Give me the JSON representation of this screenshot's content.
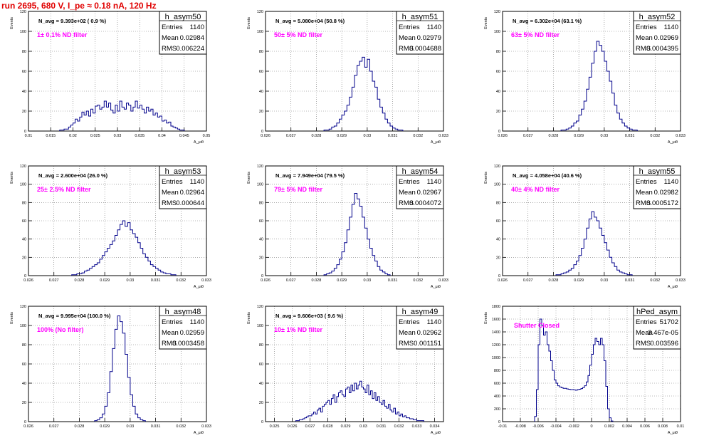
{
  "page": {
    "title": "run 2695,   680 V, I_pe ≈ 0.18 nA, 120 Hz"
  },
  "style": {
    "line_color": "#00008b",
    "note_color": "#ff00ff",
    "title_color": "#e00000",
    "grid": true
  },
  "chart_data": [
    {
      "type": "bar",
      "name": "h_asym50",
      "stats": {
        "entries_label": "Entries",
        "entries": "1140",
        "mean_label": "Mean",
        "mean": "0.02984",
        "rms_label": "RMS",
        "rms": "0.006224"
      },
      "navg": "N_avg = 9.393e+02 ( 0.9 %)",
      "note": "1± 0.1% ND filter",
      "xlabel": "A_μιθ",
      "ylabel": "Events",
      "xlim": [
        0.01,
        0.05
      ],
      "ylim": [
        0,
        120
      ],
      "xticks": [
        0.01,
        0.015,
        0.02,
        0.025,
        0.03,
        0.035,
        0.04,
        0.045,
        0.05
      ],
      "xticklabels": [
        "0.01",
        "0.015",
        "0.02",
        "0.025",
        "0.03",
        "0.035",
        "0.04",
        "0.045",
        "0.05"
      ],
      "yticks": [
        0,
        20,
        40,
        60,
        80,
        100,
        120
      ],
      "bin_start": 0.017,
      "bin_width": 0.0005,
      "values": [
        1,
        1,
        2,
        2,
        4,
        6,
        8,
        12,
        10,
        14,
        19,
        16,
        20,
        15,
        22,
        18,
        25,
        26,
        22,
        24,
        30,
        24,
        28,
        21,
        18,
        26,
        20,
        30,
        24,
        22,
        28,
        26,
        20,
        24,
        30,
        23,
        26,
        22,
        18,
        24,
        20,
        22,
        16,
        18,
        14,
        15,
        10,
        11,
        8,
        9,
        5,
        4,
        3,
        2,
        1,
        1
      ]
    },
    {
      "type": "bar",
      "name": "h_asym51",
      "stats": {
        "entries_label": "Entries",
        "entries": "1140",
        "mean_label": "Mean",
        "mean": "0.02979",
        "rms_label": "RMS",
        "rms": "0.0004688"
      },
      "navg": "N_avg = 5.080e+04 (50.8 %)",
      "note": "50± 5% ND filter",
      "xlabel": "A_μιθ",
      "ylabel": "Events",
      "xlim": [
        0.026,
        0.033
      ],
      "ylim": [
        0,
        120
      ],
      "xticks": [
        0.026,
        0.027,
        0.028,
        0.029,
        0.03,
        0.031,
        0.032,
        0.033
      ],
      "xticklabels": [
        "0.026",
        "0.027",
        "0.028",
        "0.029",
        "0.03",
        "0.031",
        "0.032",
        "0.033"
      ],
      "yticks": [
        0,
        20,
        40,
        60,
        80,
        100,
        120
      ],
      "bin_start": 0.0283,
      "bin_width": 0.0001,
      "values": [
        1,
        1,
        2,
        4,
        5,
        8,
        12,
        16,
        20,
        26,
        34,
        44,
        56,
        66,
        70,
        74,
        64,
        72,
        60,
        50,
        44,
        32,
        24,
        18,
        12,
        8,
        5,
        3,
        2,
        1,
        1
      ]
    },
    {
      "type": "bar",
      "name": "h_asym52",
      "stats": {
        "entries_label": "Entries",
        "entries": "1140",
        "mean_label": "Mean",
        "mean": "0.02969",
        "rms_label": "RMS",
        "rms": "0.0004395"
      },
      "navg": "N_avg = 6.302e+04 (63.1 %)",
      "note": "63± 5% ND filter",
      "xlabel": "A_μιθ",
      "ylabel": "Events",
      "xlim": [
        0.026,
        0.033
      ],
      "ylim": [
        0,
        120
      ],
      "xticks": [
        0.026,
        0.027,
        0.028,
        0.029,
        0.03,
        0.031,
        0.032,
        0.033
      ],
      "xticklabels": [
        "0.026",
        "0.027",
        "0.028",
        "0.029",
        "0.03",
        "0.031",
        "0.032",
        "0.033"
      ],
      "yticks": [
        0,
        20,
        40,
        60,
        80,
        100,
        120
      ],
      "bin_start": 0.0283,
      "bin_width": 0.0001,
      "values": [
        1,
        1,
        2,
        3,
        5,
        8,
        10,
        16,
        22,
        30,
        42,
        54,
        68,
        80,
        90,
        86,
        80,
        70,
        60,
        50,
        38,
        26,
        18,
        12,
        8,
        5,
        3,
        2,
        1,
        1
      ]
    },
    {
      "type": "bar",
      "name": "h_asym53",
      "stats": {
        "entries_label": "Entries",
        "entries": "1140",
        "mean_label": "Mean",
        "mean": "0.02964",
        "rms_label": "RMS",
        "rms": "0.000644"
      },
      "navg": "N_avg = 2.600e+04 (26.0 %)",
      "note": "25± 2.5% ND filter",
      "xlabel": "A_μιθ",
      "ylabel": "Events",
      "xlim": [
        0.026,
        0.033
      ],
      "ylim": [
        0,
        120
      ],
      "xticks": [
        0.026,
        0.027,
        0.028,
        0.029,
        0.03,
        0.031,
        0.032,
        0.033
      ],
      "xticklabels": [
        "0.026",
        "0.027",
        "0.028",
        "0.029",
        "0.03",
        "0.031",
        "0.032",
        "0.033"
      ],
      "yticks": [
        0,
        20,
        40,
        60,
        80,
        100,
        120
      ],
      "bin_start": 0.0277,
      "bin_width": 0.0001,
      "values": [
        1,
        1,
        2,
        2,
        3,
        5,
        6,
        8,
        10,
        12,
        14,
        18,
        22,
        26,
        30,
        34,
        38,
        44,
        50,
        56,
        60,
        54,
        58,
        50,
        46,
        42,
        36,
        30,
        24,
        20,
        16,
        12,
        10,
        8,
        6,
        4,
        3,
        2,
        2,
        1,
        1
      ]
    },
    {
      "type": "bar",
      "name": "h_asym54",
      "stats": {
        "entries_label": "Entries",
        "entries": "1140",
        "mean_label": "Mean",
        "mean": "0.02967",
        "rms_label": "RMS",
        "rms": "0.0004072"
      },
      "navg": "N_avg = 7.949e+04 (79.5 %)",
      "note": "79± 5% ND filter",
      "xlabel": "A_μιθ",
      "ylabel": "Events",
      "xlim": [
        0.026,
        0.033
      ],
      "ylim": [
        0,
        120
      ],
      "xticks": [
        0.026,
        0.027,
        0.028,
        0.029,
        0.03,
        0.031,
        0.032,
        0.033
      ],
      "xticklabels": [
        "0.026",
        "0.027",
        "0.028",
        "0.029",
        "0.03",
        "0.031",
        "0.032",
        "0.033"
      ],
      "yticks": [
        0,
        20,
        40,
        60,
        80,
        100,
        120
      ],
      "bin_start": 0.0283,
      "bin_width": 0.0001,
      "values": [
        1,
        2,
        3,
        5,
        8,
        12,
        18,
        26,
        36,
        50,
        64,
        78,
        90,
        84,
        76,
        64,
        52,
        40,
        30,
        22,
        16,
        10,
        6,
        4,
        2,
        1
      ]
    },
    {
      "type": "bar",
      "name": "h_asym55",
      "stats": {
        "entries_label": "Entries",
        "entries": "1140",
        "mean_label": "Mean",
        "mean": "0.02982",
        "rms_label": "RMS",
        "rms": "0.0005172"
      },
      "navg": "N_avg = 4.058e+04 (40.6 %)",
      "note": "40± 4% ND filter",
      "xlabel": "A_μιθ",
      "ylabel": "Events",
      "xlim": [
        0.026,
        0.033
      ],
      "ylim": [
        0,
        120
      ],
      "xticks": [
        0.026,
        0.027,
        0.028,
        0.029,
        0.03,
        0.031,
        0.032,
        0.033
      ],
      "xticklabels": [
        "0.026",
        "0.027",
        "0.028",
        "0.029",
        "0.03",
        "0.031",
        "0.032",
        "0.033"
      ],
      "yticks": [
        0,
        20,
        40,
        60,
        80,
        100,
        120
      ],
      "bin_start": 0.0281,
      "bin_width": 0.0001,
      "values": [
        1,
        1,
        2,
        3,
        4,
        6,
        8,
        12,
        16,
        22,
        30,
        40,
        52,
        62,
        70,
        64,
        60,
        52,
        44,
        36,
        28,
        20,
        14,
        10,
        6,
        4,
        3,
        2,
        1,
        1
      ]
    },
    {
      "type": "bar",
      "name": "h_asym48",
      "stats": {
        "entries_label": "Entries",
        "entries": "1140",
        "mean_label": "Mean",
        "mean": "0.02959",
        "rms_label": "RMS",
        "rms": "0.0003458"
      },
      "navg": "N_avg = 9.995e+04 (100.0 %)",
      "note": "100% (No filter)",
      "xlabel": "A_μιθ",
      "ylabel": "Events",
      "xlim": [
        0.026,
        0.033
      ],
      "ylim": [
        0,
        120
      ],
      "xticks": [
        0.026,
        0.027,
        0.028,
        0.029,
        0.03,
        0.031,
        0.032,
        0.033
      ],
      "xticklabels": [
        "0.026",
        "0.027",
        "0.028",
        "0.029",
        "0.03",
        "0.031",
        "0.032",
        "0.033"
      ],
      "yticks": [
        0,
        20,
        40,
        60,
        80,
        100,
        120
      ],
      "bin_start": 0.0286,
      "bin_width": 0.0001,
      "values": [
        1,
        2,
        4,
        8,
        16,
        30,
        52,
        76,
        96,
        110,
        104,
        92,
        70,
        46,
        28,
        16,
        8,
        4,
        2,
        1
      ]
    },
    {
      "type": "bar",
      "name": "h_asym49",
      "stats": {
        "entries_label": "Entries",
        "entries": "1140",
        "mean_label": "Mean",
        "mean": "0.02962",
        "rms_label": "RMS",
        "rms": "0.001151"
      },
      "navg": "N_avg = 9.606e+03 ( 9.6 %)",
      "note": "10± 1% ND filter",
      "xlabel": "A_μιθ",
      "ylabel": "Events",
      "xlim": [
        0.0245,
        0.0345
      ],
      "ylim": [
        0,
        120
      ],
      "xticks": [
        0.025,
        0.026,
        0.027,
        0.028,
        0.029,
        0.03,
        0.031,
        0.032,
        0.033,
        0.034
      ],
      "xticklabels": [
        "0.025",
        "0.026",
        "0.027",
        "0.028",
        "0.029",
        "0.03",
        "0.031",
        "0.032",
        "0.033",
        "0.034"
      ],
      "yticks": [
        0,
        20,
        40,
        60,
        80,
        100,
        120
      ],
      "bin_start": 0.0262,
      "bin_width": 0.0001,
      "values": [
        1,
        1,
        2,
        2,
        3,
        4,
        5,
        6,
        6,
        8,
        10,
        8,
        12,
        14,
        10,
        16,
        18,
        20,
        22,
        18,
        24,
        28,
        20,
        26,
        30,
        32,
        28,
        26,
        34,
        36,
        30,
        38,
        32,
        40,
        34,
        38,
        42,
        36,
        34,
        30,
        38,
        28,
        32,
        24,
        30,
        22,
        26,
        20,
        18,
        22,
        16,
        14,
        18,
        12,
        10,
        14,
        8,
        10,
        6,
        8,
        5,
        6,
        4,
        4,
        3,
        3,
        2,
        2,
        1,
        1,
        1,
        1
      ]
    },
    {
      "type": "bar",
      "name": "hPed_asym",
      "stats": {
        "entries_label": "Entries",
        "entries": "51702",
        "mean_label": "Mean",
        "mean": "-3.467e-05",
        "rms_label": "RMS",
        "rms": "0.003596"
      },
      "navg": "",
      "note": "Shutter Closed",
      "xlabel": "A_μιθ",
      "ylabel": "Events",
      "xlim": [
        -0.01,
        0.01
      ],
      "ylim": [
        0,
        1800
      ],
      "xticks": [
        -0.01,
        -0.008,
        -0.006,
        -0.004,
        -0.002,
        0,
        0.002,
        0.004,
        0.006,
        0.008,
        0.01
      ],
      "xticklabels": [
        "-0.01",
        "-0.008",
        "-0.006",
        "-0.004",
        "-0.002",
        "0",
        "0.002",
        "0.004",
        "0.006",
        "0.008",
        "0.01"
      ],
      "yticks": [
        0,
        200,
        400,
        600,
        800,
        1000,
        1200,
        1400,
        1600,
        1800
      ],
      "bin_start": -0.0064,
      "bin_width": 0.0002,
      "values": [
        80,
        500,
        1200,
        1600,
        1500,
        1350,
        1400,
        1200,
        1100,
        950,
        800,
        650,
        600,
        560,
        540,
        530,
        520,
        520,
        510,
        505,
        500,
        500,
        495,
        490,
        500,
        505,
        515,
        530,
        560,
        620,
        720,
        880,
        1050,
        1200,
        1300,
        1250,
        1200,
        1300,
        1200,
        950,
        550,
        200,
        60,
        10
      ]
    }
  ]
}
